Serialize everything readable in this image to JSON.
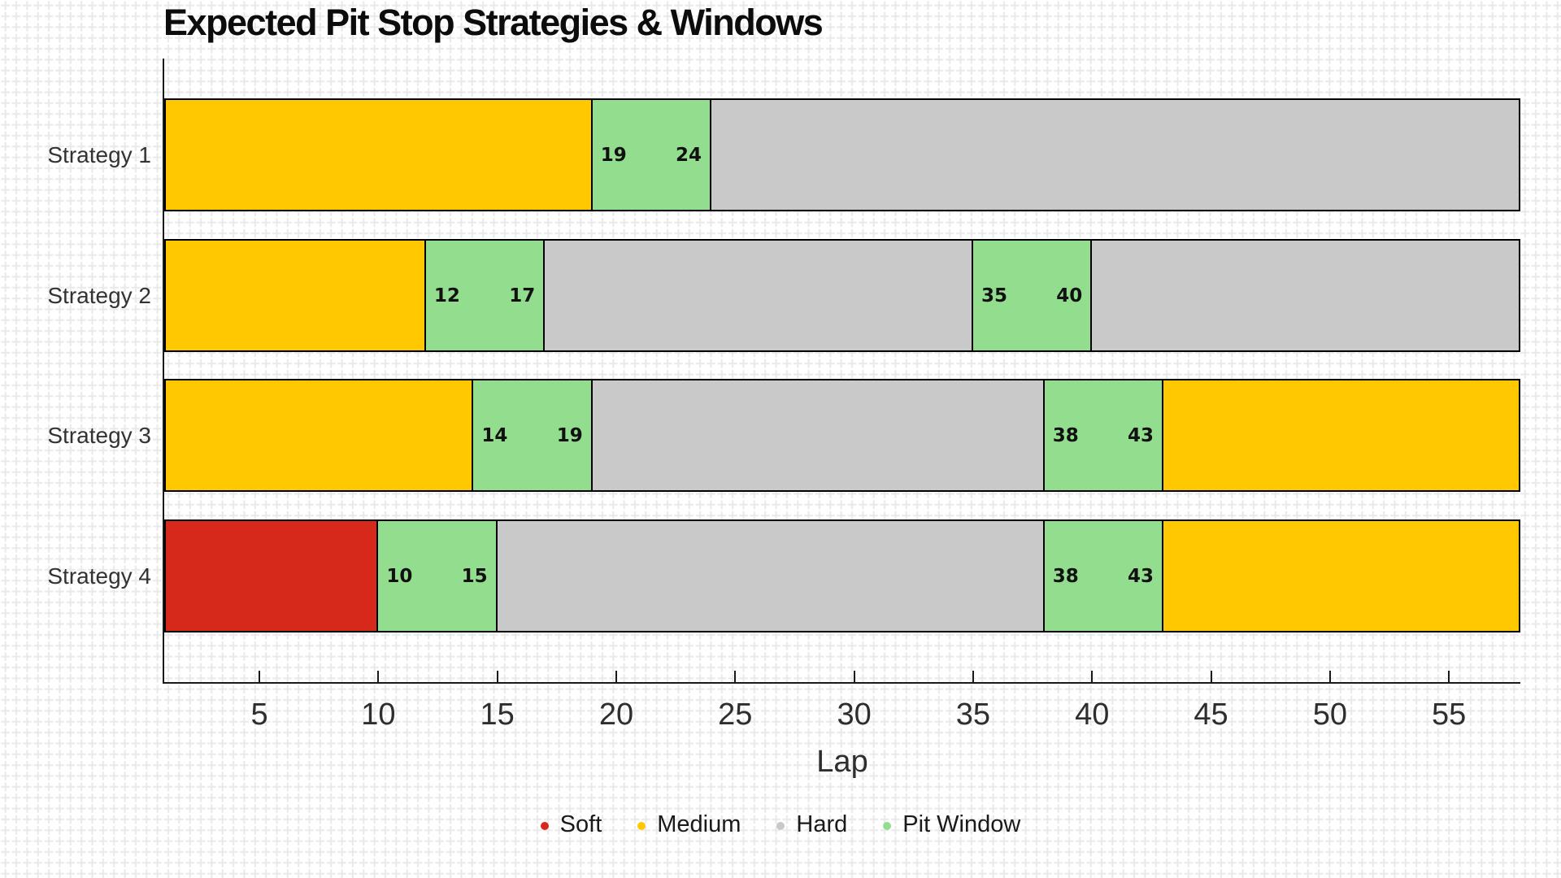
{
  "chart_data": {
    "type": "bar",
    "subtype": "horizontal-stacked-gantt",
    "title": "Expected Pit Stop Strategies & Windows",
    "xlabel": "Lap",
    "xlim": [
      1,
      58
    ],
    "x_ticks": [
      5,
      10,
      15,
      20,
      25,
      30,
      35,
      40,
      45,
      50,
      55
    ],
    "grid": "graph-paper cross pattern background, no plot gridlines",
    "categories": [
      "Strategy 1",
      "Strategy 2",
      "Strategy 3",
      "Strategy 4"
    ],
    "compound_colors": {
      "Soft": "#d7281c",
      "Medium": "#ffc800",
      "Hard": "#c9c9c9",
      "Pit Window": "#93dd8e"
    },
    "legend": {
      "position": "bottom-center",
      "entries": [
        {
          "label": "Soft",
          "color": "#d7281c"
        },
        {
          "label": "Medium",
          "color": "#ffc800"
        },
        {
          "label": "Hard",
          "color": "#c9c9c9"
        },
        {
          "label": "Pit Window",
          "color": "#93dd8e"
        }
      ]
    },
    "series": [
      {
        "category": "Strategy 1",
        "segments": [
          {
            "compound": "Medium",
            "start_lap": 1,
            "end_lap": 19
          },
          {
            "compound": "Pit Window",
            "start_lap": 19,
            "end_lap": 24,
            "labels": [
              "19",
              "24"
            ]
          },
          {
            "compound": "Hard",
            "start_lap": 24,
            "end_lap": 58
          }
        ]
      },
      {
        "category": "Strategy 2",
        "segments": [
          {
            "compound": "Medium",
            "start_lap": 1,
            "end_lap": 12
          },
          {
            "compound": "Pit Window",
            "start_lap": 12,
            "end_lap": 17,
            "labels": [
              "12",
              "17"
            ]
          },
          {
            "compound": "Hard",
            "start_lap": 17,
            "end_lap": 35
          },
          {
            "compound": "Pit Window",
            "start_lap": 35,
            "end_lap": 40,
            "labels": [
              "35",
              "40"
            ]
          },
          {
            "compound": "Hard",
            "start_lap": 40,
            "end_lap": 58
          }
        ]
      },
      {
        "category": "Strategy 3",
        "segments": [
          {
            "compound": "Medium",
            "start_lap": 1,
            "end_lap": 14
          },
          {
            "compound": "Pit Window",
            "start_lap": 14,
            "end_lap": 19,
            "labels": [
              "14",
              "19"
            ]
          },
          {
            "compound": "Hard",
            "start_lap": 19,
            "end_lap": 38
          },
          {
            "compound": "Pit Window",
            "start_lap": 38,
            "end_lap": 43,
            "labels": [
              "38",
              "43"
            ]
          },
          {
            "compound": "Medium",
            "start_lap": 43,
            "end_lap": 58
          }
        ]
      },
      {
        "category": "Strategy 4",
        "segments": [
          {
            "compound": "Soft",
            "start_lap": 1,
            "end_lap": 10
          },
          {
            "compound": "Pit Window",
            "start_lap": 10,
            "end_lap": 15,
            "labels": [
              "10",
              "15"
            ]
          },
          {
            "compound": "Hard",
            "start_lap": 15,
            "end_lap": 38
          },
          {
            "compound": "Pit Window",
            "start_lap": 38,
            "end_lap": 43,
            "labels": [
              "38",
              "43"
            ]
          },
          {
            "compound": "Medium",
            "start_lap": 43,
            "end_lap": 58
          }
        ]
      }
    ]
  }
}
